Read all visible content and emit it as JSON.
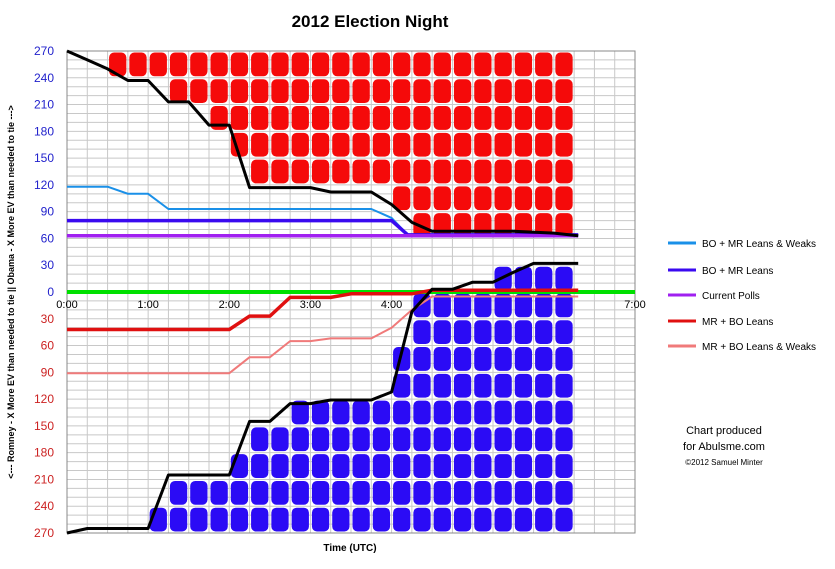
{
  "chart_data": {
    "type": "line",
    "title": "2012 Election Night",
    "xlabel": "Time (UTC)",
    "ylabel": "<--- Romney - X More EV than needed to tie ||  Obama - X More EV than needed to tie --->",
    "x_tick_labels": [
      "0:00",
      "1:00",
      "2:00",
      "3:00",
      "4:00",
      "7:00"
    ],
    "y_tick_labels_top": [
      "270",
      "240",
      "210",
      "180",
      "150",
      "120",
      "90",
      "60",
      "30"
    ],
    "y_tick_label_zero": "0",
    "y_tick_labels_bottom": [
      "30",
      "60",
      "90",
      "120",
      "150",
      "180",
      "210",
      "240",
      "270"
    ],
    "xlim_hours": [
      0,
      7
    ],
    "ylim": [
      -270,
      270
    ],
    "grid": true,
    "legend_position": "right",
    "colors": {
      "obama_fill": "#2b0bf5",
      "romney_fill": "#f50a0a",
      "current_polls": "#a020f0",
      "zero_line": "#00e000",
      "bo_mr_leans_weaks": "#1a90e8",
      "bo_mr_leans": "#3a0af0",
      "mr_bo_leans": "#e01010",
      "mr_bo_leans_weaks": "#f07a7a"
    },
    "series": [
      {
        "name": "BO + MR Leans & Weaks",
        "color": "#1a90e8",
        "points": [
          [
            0,
            118
          ],
          [
            0.5,
            118
          ],
          [
            0.75,
            110
          ],
          [
            1,
            110
          ],
          [
            1.25,
            93
          ],
          [
            3.75,
            93
          ],
          [
            4,
            83
          ],
          [
            4.2,
            64
          ],
          [
            6.3,
            64
          ]
        ]
      },
      {
        "name": "BO + MR Leans",
        "color": "#3a0af0",
        "points": [
          [
            0,
            80
          ],
          [
            4,
            80
          ],
          [
            4.2,
            64
          ],
          [
            6.3,
            64
          ]
        ]
      },
      {
        "name": "Current Polls",
        "color": "#a020f0",
        "points": [
          [
            0,
            63
          ],
          [
            6.3,
            63
          ]
        ]
      },
      {
        "name": "MR + BO Leans",
        "color": "#e01010",
        "points": [
          [
            0,
            -42
          ],
          [
            2,
            -42
          ],
          [
            2.25,
            -27
          ],
          [
            2.5,
            -27
          ],
          [
            2.75,
            -6
          ],
          [
            3.25,
            -6
          ],
          [
            3.5,
            -2
          ],
          [
            4.25,
            -2
          ],
          [
            4.5,
            2
          ],
          [
            6.3,
            2
          ]
        ]
      },
      {
        "name": "MR + BO Leans & Weaks",
        "color": "#f07a7a",
        "points": [
          [
            0,
            -91
          ],
          [
            2,
            -91
          ],
          [
            2.25,
            -73
          ],
          [
            2.5,
            -73
          ],
          [
            2.75,
            -55
          ],
          [
            3,
            -55
          ],
          [
            3.25,
            -52
          ],
          [
            3.75,
            -52
          ],
          [
            4,
            -40
          ],
          [
            4.25,
            -20
          ],
          [
            4.5,
            -5
          ],
          [
            6.3,
            -5
          ]
        ]
      }
    ],
    "obama_result": {
      "color": "#000000",
      "points": [
        [
          0,
          -270
        ],
        [
          0.25,
          -265
        ],
        [
          1,
          -265
        ],
        [
          1.25,
          -205
        ],
        [
          2,
          -205
        ],
        [
          2.25,
          -145
        ],
        [
          2.5,
          -145
        ],
        [
          2.75,
          -125
        ],
        [
          3,
          -125
        ],
        [
          3.25,
          -121
        ],
        [
          3.75,
          -121
        ],
        [
          4,
          -112
        ],
        [
          4.25,
          -22
        ],
        [
          4.5,
          3
        ],
        [
          4.75,
          3
        ],
        [
          5,
          11
        ],
        [
          5.25,
          11
        ],
        [
          5.5,
          22
        ],
        [
          5.75,
          32
        ],
        [
          6.3,
          32
        ]
      ]
    },
    "romney_result": {
      "color": "#000000",
      "points": [
        [
          0,
          270
        ],
        [
          0.25,
          260
        ],
        [
          0.5,
          250
        ],
        [
          0.75,
          237
        ],
        [
          1,
          237
        ],
        [
          1.25,
          213
        ],
        [
          1.5,
          213
        ],
        [
          1.75,
          187
        ],
        [
          2,
          187
        ],
        [
          2.25,
          117
        ],
        [
          3,
          117
        ],
        [
          3.25,
          112
        ],
        [
          3.75,
          112
        ],
        [
          4,
          98
        ],
        [
          4.25,
          78
        ],
        [
          4.5,
          68
        ],
        [
          5.5,
          68
        ],
        [
          6,
          66
        ],
        [
          6.3,
          63
        ]
      ]
    },
    "legend": [
      {
        "label": "BO + MR Leans & Weaks",
        "color": "#1a90e8"
      },
      {
        "label": "BO + MR Leans",
        "color": "#3a0af0"
      },
      {
        "label": "Current Polls",
        "color": "#a020f0"
      },
      {
        "label": "MR + BO Leans",
        "color": "#e01010"
      },
      {
        "label": "MR + BO Leans & Weaks",
        "color": "#f07a7a"
      }
    ],
    "annotations": [
      "Chart produced",
      "for Abulsme.com",
      "©2012 Samuel Minter"
    ]
  }
}
